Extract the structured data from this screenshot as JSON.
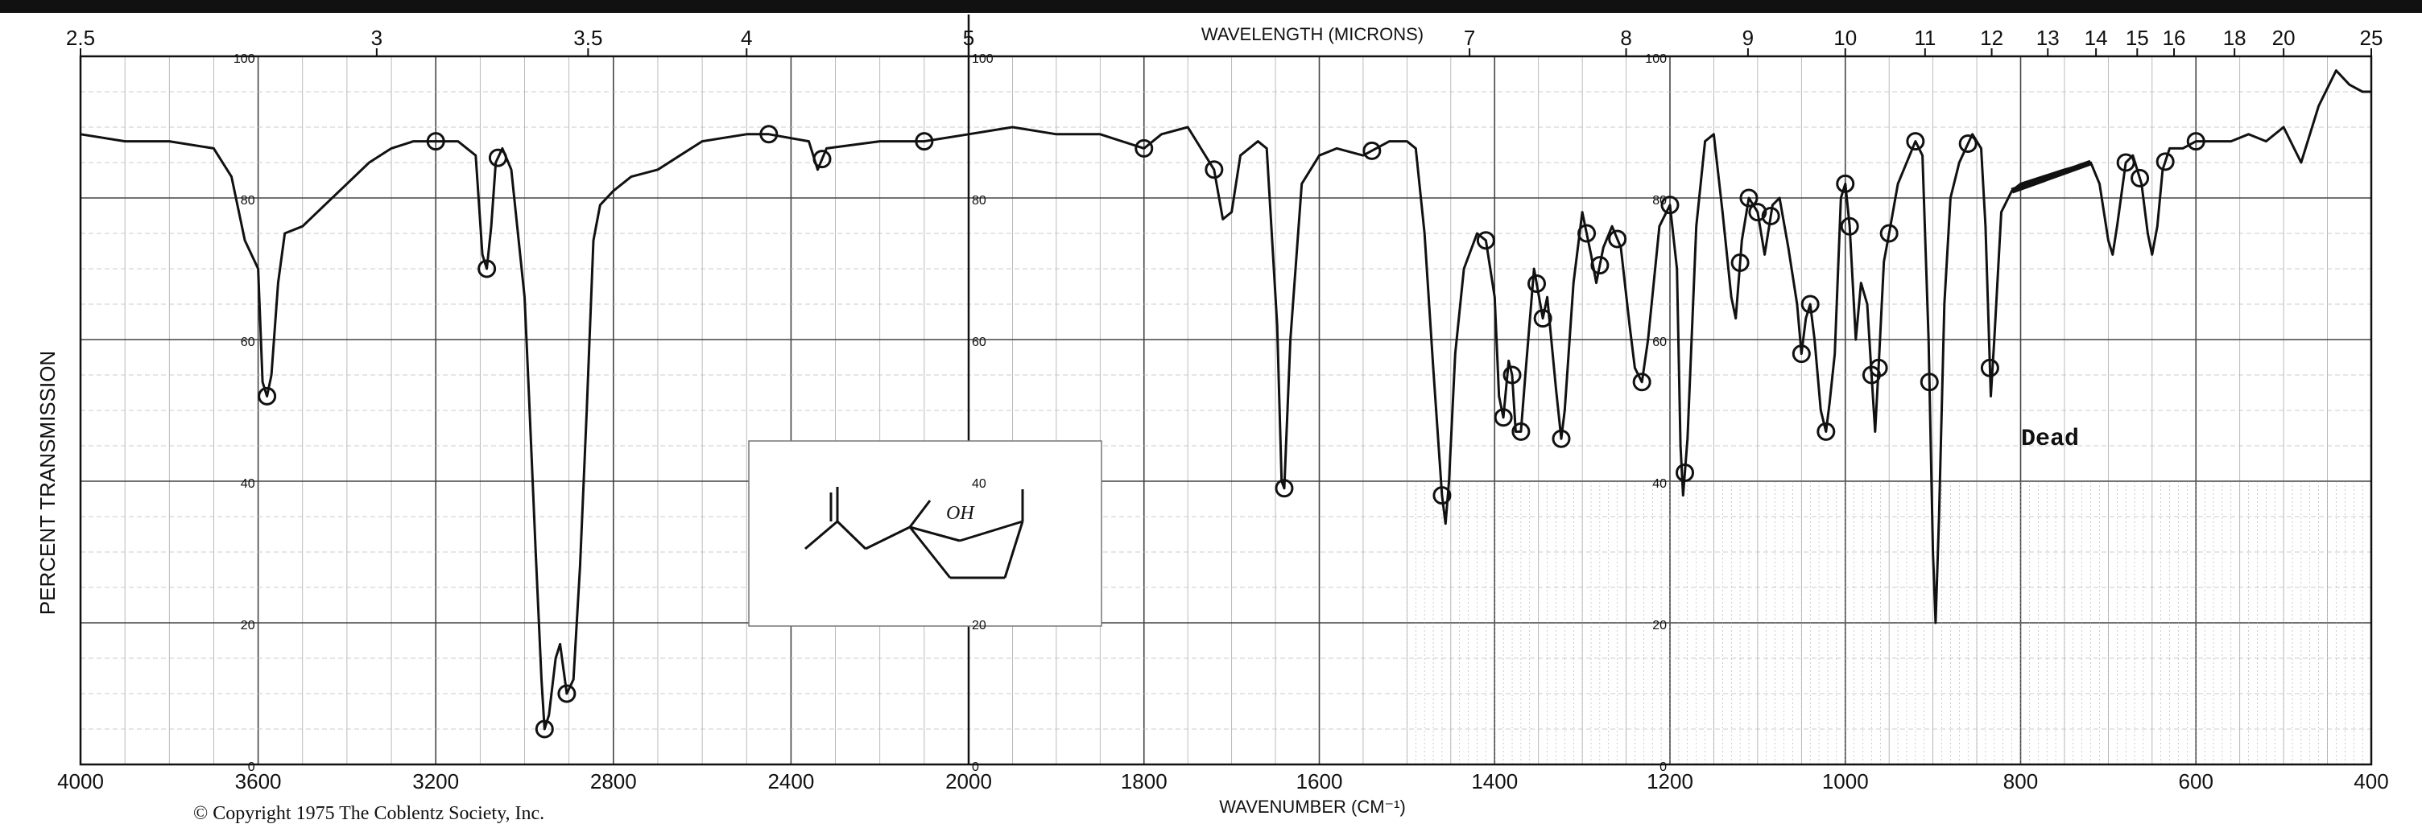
{
  "chart_data": {
    "type": "line",
    "top_axis_label": "WAVELENGTH (MICRONS)",
    "xlabel": "WAVENUMBER (CM⁻¹)",
    "ylabel": "PERCENT TRANSMISSION",
    "copyright": "© Copyright 1975  The Coblentz Society, Inc.",
    "annotation": "Dead",
    "structure_label": "OH",
    "x_ticks": [
      "4000",
      "3600",
      "3200",
      "2800",
      "2400",
      "2000",
      "1800",
      "1600",
      "1400",
      "1200",
      "1000",
      "800",
      "600",
      "400"
    ],
    "top_ticks": [
      {
        "label": "2.5",
        "wn": 4000
      },
      {
        "label": "3",
        "wn": 3333
      },
      {
        "label": "3.5",
        "wn": 2857
      },
      {
        "label": "4",
        "wn": 2500
      },
      {
        "label": "5",
        "wn": 2000
      },
      {
        "label": "7",
        "wn": 1428.6
      },
      {
        "label": "8",
        "wn": 1250
      },
      {
        "label": "9",
        "wn": 1111
      },
      {
        "label": "10",
        "wn": 1000
      },
      {
        "label": "11",
        "wn": 909
      },
      {
        "label": "12",
        "wn": 833
      },
      {
        "label": "13",
        "wn": 769
      },
      {
        "label": "14",
        "wn": 714
      },
      {
        "label": "15",
        "wn": 667
      },
      {
        "label": "16",
        "wn": 625
      },
      {
        "label": "18",
        "wn": 556
      },
      {
        "label": "20",
        "wn": 500
      },
      {
        "label": "25",
        "wn": 400
      }
    ],
    "y_ticks": [
      "0",
      "20",
      "40",
      "60",
      "80",
      "100"
    ],
    "ylim": [
      0,
      100
    ],
    "grid": true,
    "series": [
      {
        "color": "#111111",
        "points": [
          [
            4000,
            89
          ],
          [
            3900,
            88
          ],
          [
            3800,
            88
          ],
          [
            3700,
            87
          ],
          [
            3660,
            83
          ],
          [
            3630,
            74
          ],
          [
            3600,
            70
          ],
          [
            3590,
            54
          ],
          [
            3580,
            52
          ],
          [
            3570,
            55
          ],
          [
            3555,
            68
          ],
          [
            3540,
            75
          ],
          [
            3500,
            76
          ],
          [
            3450,
            79
          ],
          [
            3400,
            82
          ],
          [
            3350,
            85
          ],
          [
            3300,
            87
          ],
          [
            3250,
            88
          ],
          [
            3200,
            88
          ],
          [
            3150,
            88
          ],
          [
            3110,
            86
          ],
          [
            3095,
            72
          ],
          [
            3085,
            70
          ],
          [
            3075,
            76
          ],
          [
            3065,
            85
          ],
          [
            3050,
            87
          ],
          [
            3030,
            84
          ],
          [
            3000,
            66
          ],
          [
            2990,
            52
          ],
          [
            2975,
            30
          ],
          [
            2962,
            12
          ],
          [
            2955,
            5
          ],
          [
            2945,
            7
          ],
          [
            2930,
            15
          ],
          [
            2920,
            17
          ],
          [
            2905,
            10
          ],
          [
            2890,
            12
          ],
          [
            2875,
            28
          ],
          [
            2860,
            50
          ],
          [
            2845,
            74
          ],
          [
            2830,
            79
          ],
          [
            2800,
            81
          ],
          [
            2760,
            83
          ],
          [
            2700,
            84
          ],
          [
            2650,
            86
          ],
          [
            2600,
            88
          ],
          [
            2500,
            89
          ],
          [
            2450,
            89
          ],
          [
            2360,
            88
          ],
          [
            2340,
            84
          ],
          [
            2320,
            87
          ],
          [
            2200,
            88
          ],
          [
            2100,
            88
          ],
          [
            2000,
            89
          ],
          [
            1950,
            90
          ],
          [
            1900,
            89
          ],
          [
            1850,
            89
          ],
          [
            1800,
            87
          ],
          [
            1780,
            89
          ],
          [
            1750,
            90
          ],
          [
            1720,
            84
          ],
          [
            1710,
            77
          ],
          [
            1700,
            78
          ],
          [
            1690,
            86
          ],
          [
            1670,
            88
          ],
          [
            1660,
            87
          ],
          [
            1648,
            62
          ],
          [
            1643,
            40
          ],
          [
            1640,
            39
          ],
          [
            1633,
            60
          ],
          [
            1620,
            82
          ],
          [
            1600,
            86
          ],
          [
            1580,
            87
          ],
          [
            1550,
            86
          ],
          [
            1520,
            88
          ],
          [
            1500,
            88
          ],
          [
            1490,
            87
          ],
          [
            1480,
            75
          ],
          [
            1470,
            56
          ],
          [
            1460,
            38
          ],
          [
            1456,
            34
          ],
          [
            1452,
            40
          ],
          [
            1445,
            58
          ],
          [
            1435,
            70
          ],
          [
            1420,
            75
          ],
          [
            1410,
            74
          ],
          [
            1400,
            66
          ],
          [
            1395,
            52
          ],
          [
            1390,
            49
          ],
          [
            1384,
            57
          ],
          [
            1380,
            55
          ],
          [
            1376,
            47
          ],
          [
            1370,
            47
          ],
          [
            1365,
            55
          ],
          [
            1355,
            70
          ],
          [
            1345,
            63
          ],
          [
            1340,
            66
          ],
          [
            1330,
            53
          ],
          [
            1324,
            46
          ],
          [
            1320,
            50
          ],
          [
            1310,
            68
          ],
          [
            1300,
            78
          ],
          [
            1290,
            72
          ],
          [
            1284,
            68
          ],
          [
            1276,
            73
          ],
          [
            1266,
            76
          ],
          [
            1256,
            73
          ],
          [
            1246,
            62
          ],
          [
            1240,
            56
          ],
          [
            1232,
            54
          ],
          [
            1225,
            60
          ],
          [
            1212,
            76
          ],
          [
            1200,
            79
          ],
          [
            1192,
            70
          ],
          [
            1188,
            45
          ],
          [
            1185,
            38
          ],
          [
            1180,
            46
          ],
          [
            1170,
            76
          ],
          [
            1160,
            88
          ],
          [
            1150,
            89
          ],
          [
            1140,
            78
          ],
          [
            1130,
            66
          ],
          [
            1125,
            63
          ],
          [
            1118,
            74
          ],
          [
            1110,
            80
          ],
          [
            1100,
            78
          ],
          [
            1092,
            72
          ],
          [
            1083,
            79
          ],
          [
            1075,
            80
          ],
          [
            1065,
            73
          ],
          [
            1055,
            65
          ],
          [
            1050,
            58
          ],
          [
            1045,
            63
          ],
          [
            1040,
            65
          ],
          [
            1035,
            60
          ],
          [
            1028,
            50
          ],
          [
            1022,
            47
          ],
          [
            1018,
            51
          ],
          [
            1012,
            58
          ],
          [
            1005,
            80
          ],
          [
            1000,
            82
          ],
          [
            995,
            76
          ],
          [
            988,
            60
          ],
          [
            982,
            68
          ],
          [
            975,
            65
          ],
          [
            970,
            55
          ],
          [
            966,
            47
          ],
          [
            962,
            56
          ],
          [
            956,
            71
          ],
          [
            950,
            75
          ],
          [
            940,
            82
          ],
          [
            920,
            88
          ],
          [
            912,
            86
          ],
          [
            905,
            60
          ],
          [
            900,
            30
          ],
          [
            897,
            20
          ],
          [
            893,
            35
          ],
          [
            887,
            65
          ],
          [
            880,
            80
          ],
          [
            870,
            85
          ],
          [
            855,
            89
          ],
          [
            845,
            87
          ],
          [
            840,
            76
          ],
          [
            836,
            60
          ],
          [
            834,
            52
          ],
          [
            830,
            60
          ],
          [
            822,
            78
          ],
          [
            810,
            81
          ],
          [
            800,
            82
          ],
          [
            750,
            84
          ],
          [
            720,
            85
          ],
          [
            710,
            82
          ],
          [
            700,
            74
          ],
          [
            695,
            72
          ],
          [
            690,
            76
          ],
          [
            680,
            85
          ],
          [
            672,
            86
          ],
          [
            662,
            82
          ],
          [
            655,
            75
          ],
          [
            650,
            72
          ],
          [
            644,
            76
          ],
          [
            638,
            84
          ],
          [
            630,
            87
          ],
          [
            615,
            87
          ],
          [
            600,
            88
          ],
          [
            580,
            88
          ],
          [
            560,
            88
          ],
          [
            540,
            89
          ],
          [
            520,
            88
          ],
          [
            500,
            90
          ],
          [
            480,
            85
          ],
          [
            460,
            93
          ],
          [
            440,
            98
          ],
          [
            425,
            96
          ],
          [
            410,
            95
          ],
          [
            400,
            95
          ]
        ]
      }
    ],
    "marked_peaks_cm1": [
      3580,
      3200,
      3085,
      3060,
      2955,
      2905,
      2450,
      2330,
      2100,
      1800,
      1720,
      1640,
      1540,
      1460,
      1410,
      1390,
      1380,
      1370,
      1352,
      1345,
      1324,
      1295,
      1280,
      1260,
      1232,
      1200,
      1183,
      1120,
      1110,
      1100,
      1085,
      1050,
      1040,
      1022,
      1000,
      995,
      970,
      962,
      950,
      920,
      904,
      860,
      835,
      680,
      664,
      635,
      600
    ]
  }
}
